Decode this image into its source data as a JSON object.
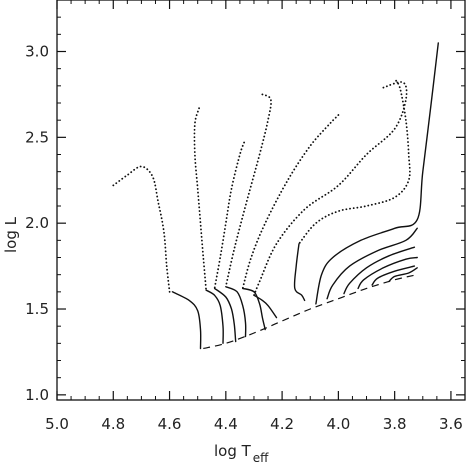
{
  "chart_data": {
    "type": "line",
    "xlabel": "log T",
    "xlabel_subscript": "eff",
    "ylabel": "log L",
    "xlim": [
      5.0,
      3.55
    ],
    "ylim": [
      0.97,
      3.3
    ],
    "x_reversed": true,
    "grid": false,
    "x_ticks": [
      5.0,
      4.8,
      4.6,
      4.4,
      4.2,
      4.0,
      3.8,
      3.6
    ],
    "x_tick_labels": [
      "5.0",
      "4.8",
      "4.6",
      "4.4",
      "4.2",
      "4.0",
      "3.8",
      "3.6"
    ],
    "y_ticks": [
      1.0,
      1.5,
      2.0,
      2.5,
      3.0
    ],
    "y_tick_labels": [
      "1.0",
      "1.5",
      "2.0",
      "2.5",
      "3.0"
    ],
    "colors": {
      "line": "#111111"
    },
    "series": [
      {
        "style": "dashed",
        "points": [
          [
            4.48,
            1.27
          ],
          [
            4.4,
            1.3
          ],
          [
            4.3,
            1.36
          ],
          [
            4.2,
            1.43
          ],
          [
            4.1,
            1.5
          ],
          [
            4.0,
            1.56
          ],
          [
            3.9,
            1.62
          ],
          [
            3.8,
            1.67
          ],
          [
            3.72,
            1.7
          ]
        ]
      },
      {
        "style": "dotted",
        "points": [
          [
            4.8,
            2.22
          ],
          [
            4.75,
            2.28
          ],
          [
            4.7,
            2.33
          ],
          [
            4.66,
            2.27
          ],
          [
            4.64,
            2.12
          ],
          [
            4.62,
            1.95
          ],
          [
            4.61,
            1.75
          ],
          [
            4.6,
            1.6
          ]
        ]
      },
      {
        "style": "solid",
        "points": [
          [
            4.59,
            1.6
          ],
          [
            4.53,
            1.55
          ],
          [
            4.5,
            1.49
          ],
          [
            4.49,
            1.38
          ],
          [
            4.49,
            1.27
          ]
        ]
      },
      {
        "style": "dotted",
        "points": [
          [
            4.495,
            2.67
          ],
          [
            4.51,
            2.58
          ],
          [
            4.51,
            2.4
          ],
          [
            4.5,
            2.2
          ],
          [
            4.49,
            2.0
          ],
          [
            4.48,
            1.8
          ],
          [
            4.47,
            1.61
          ]
        ]
      },
      {
        "style": "solid",
        "points": [
          [
            4.47,
            1.61
          ],
          [
            4.44,
            1.58
          ],
          [
            4.42,
            1.52
          ],
          [
            4.41,
            1.4
          ],
          [
            4.41,
            1.3
          ]
        ]
      },
      {
        "style": "dotted",
        "points": [
          [
            4.335,
            2.47
          ],
          [
            4.35,
            2.4
          ],
          [
            4.38,
            2.2
          ],
          [
            4.4,
            2.0
          ],
          [
            4.42,
            1.8
          ],
          [
            4.44,
            1.62
          ]
        ]
      },
      {
        "style": "solid",
        "points": [
          [
            4.44,
            1.62
          ],
          [
            4.4,
            1.57
          ],
          [
            4.38,
            1.5
          ],
          [
            4.37,
            1.41
          ],
          [
            4.365,
            1.31
          ]
        ]
      },
      {
        "style": "dotted",
        "points": [
          [
            4.27,
            2.75
          ],
          [
            4.24,
            2.72
          ],
          [
            4.25,
            2.6
          ],
          [
            4.28,
            2.4
          ],
          [
            4.33,
            2.1
          ],
          [
            4.37,
            1.85
          ],
          [
            4.4,
            1.63
          ]
        ]
      },
      {
        "style": "solid",
        "points": [
          [
            4.4,
            1.63
          ],
          [
            4.36,
            1.6
          ],
          [
            4.34,
            1.52
          ],
          [
            4.33,
            1.42
          ],
          [
            4.33,
            1.34
          ]
        ]
      },
      {
        "style": "dotted",
        "points": [
          [
            4.0,
            2.63
          ],
          [
            4.03,
            2.58
          ],
          [
            4.1,
            2.45
          ],
          [
            4.18,
            2.25
          ],
          [
            4.26,
            2.0
          ],
          [
            4.31,
            1.8
          ],
          [
            4.34,
            1.62
          ]
        ]
      },
      {
        "style": "solid",
        "points": [
          [
            4.34,
            1.62
          ],
          [
            4.3,
            1.6
          ],
          [
            4.28,
            1.53
          ],
          [
            4.27,
            1.45
          ],
          [
            4.26,
            1.38
          ]
        ]
      },
      {
        "style": "dotted",
        "points": [
          [
            3.84,
            2.79
          ],
          [
            3.77,
            2.82
          ],
          [
            3.76,
            2.72
          ],
          [
            3.8,
            2.55
          ],
          [
            3.9,
            2.4
          ],
          [
            4.0,
            2.22
          ],
          [
            4.12,
            2.08
          ],
          [
            4.22,
            1.88
          ],
          [
            4.28,
            1.66
          ],
          [
            4.3,
            1.58
          ]
        ]
      },
      {
        "style": "solid",
        "points": [
          [
            4.3,
            1.58
          ],
          [
            4.27,
            1.55
          ],
          [
            4.25,
            1.52
          ],
          [
            4.22,
            1.45
          ]
        ]
      },
      {
        "style": "dotted",
        "points": [
          [
            3.795,
            2.83
          ],
          [
            3.78,
            2.78
          ],
          [
            3.76,
            2.6
          ],
          [
            3.75,
            2.4
          ],
          [
            3.75,
            2.25
          ],
          [
            3.8,
            2.15
          ],
          [
            3.9,
            2.1
          ],
          [
            4.0,
            2.07
          ],
          [
            4.08,
            2.0
          ],
          [
            4.14,
            1.88
          ]
        ]
      },
      {
        "style": "solid",
        "points": [
          [
            4.14,
            1.88
          ],
          [
            4.15,
            1.75
          ],
          [
            4.155,
            1.62
          ],
          [
            4.13,
            1.58
          ],
          [
            4.12,
            1.55
          ]
        ]
      },
      {
        "style": "solid",
        "points": [
          [
            4.08,
            1.53
          ],
          [
            4.06,
            1.7
          ],
          [
            4.02,
            1.8
          ],
          [
            3.92,
            1.9
          ],
          [
            3.8,
            1.97
          ],
          [
            3.72,
            2.02
          ],
          [
            3.7,
            2.3
          ],
          [
            3.67,
            2.7
          ],
          [
            3.645,
            3.05
          ]
        ]
      },
      {
        "style": "solid",
        "points": [
          [
            4.04,
            1.56
          ],
          [
            4.02,
            1.64
          ],
          [
            3.96,
            1.75
          ],
          [
            3.86,
            1.84
          ],
          [
            3.76,
            1.9
          ],
          [
            3.72,
            1.97
          ]
        ]
      },
      {
        "style": "solid",
        "points": [
          [
            3.98,
            1.59
          ],
          [
            3.96,
            1.65
          ],
          [
            3.9,
            1.74
          ],
          [
            3.82,
            1.81
          ],
          [
            3.73,
            1.86
          ]
        ]
      },
      {
        "style": "solid",
        "points": [
          [
            3.93,
            1.62
          ],
          [
            3.91,
            1.67
          ],
          [
            3.84,
            1.74
          ],
          [
            3.76,
            1.79
          ],
          [
            3.72,
            1.8
          ]
        ]
      },
      {
        "style": "solid",
        "points": [
          [
            3.88,
            1.64
          ],
          [
            3.86,
            1.68
          ],
          [
            3.8,
            1.72
          ],
          [
            3.73,
            1.75
          ]
        ]
      },
      {
        "style": "solid",
        "points": [
          [
            3.82,
            1.66
          ],
          [
            3.8,
            1.69
          ],
          [
            3.75,
            1.71
          ],
          [
            3.72,
            1.74
          ]
        ]
      }
    ]
  }
}
